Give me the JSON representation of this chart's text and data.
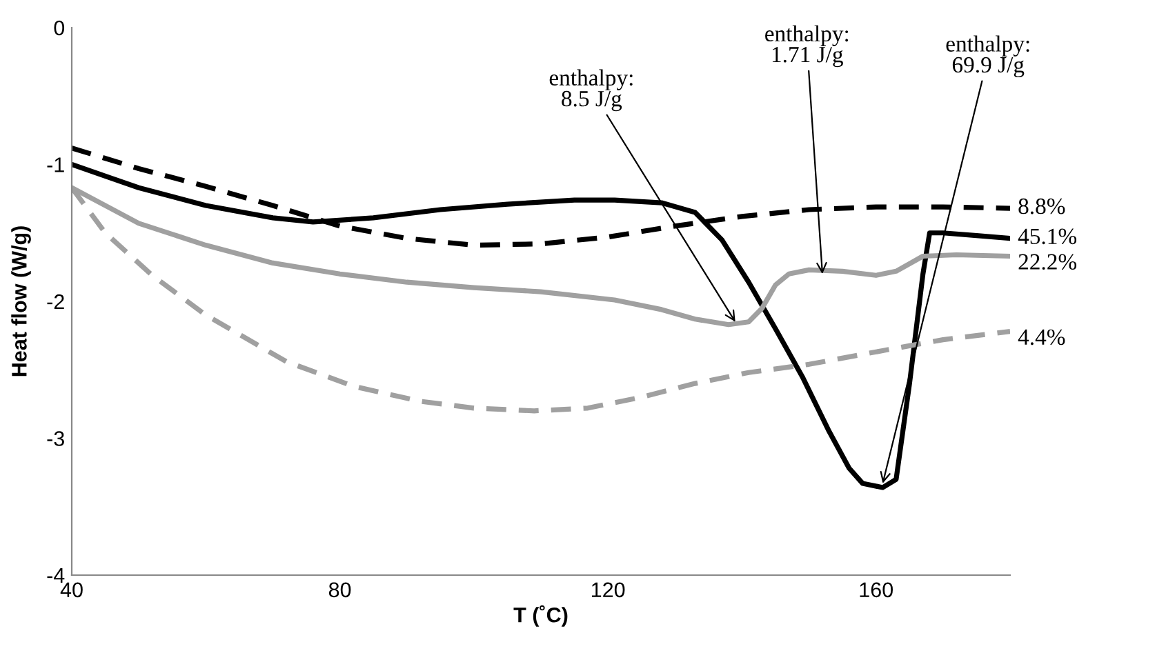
{
  "chart_data": {
    "type": "line",
    "xlabel": "T (˚C)",
    "ylabel": "Heat flow (W/g)",
    "xlim": [
      40,
      180
    ],
    "ylim": [
      -4,
      0
    ],
    "xticks": [
      40,
      80,
      120,
      160
    ],
    "yticks": [
      -4,
      -3,
      -2,
      -1,
      0
    ],
    "grid": false,
    "legend": false,
    "marker": "none",
    "series": [
      {
        "name": "8.8%",
        "color": "#000000",
        "line_style": "dashed",
        "x": [
          40,
          50,
          60,
          70,
          80,
          90,
          100,
          110,
          120,
          130,
          140,
          150,
          160,
          170,
          180
        ],
        "values": [
          -0.88,
          -1.03,
          -1.16,
          -1.3,
          -1.45,
          -1.54,
          -1.59,
          -1.58,
          -1.53,
          -1.45,
          -1.38,
          -1.33,
          -1.31,
          -1.31,
          -1.32
        ]
      },
      {
        "name": "45.1%",
        "color": "#000000",
        "line_style": "solid",
        "x": [
          40,
          50,
          60,
          70,
          76,
          85,
          95,
          105,
          115,
          121,
          128,
          133,
          137,
          141,
          145,
          149,
          153,
          156,
          158,
          161,
          163,
          165,
          167,
          168,
          170,
          175,
          180
        ],
        "values": [
          -1.0,
          -1.17,
          -1.3,
          -1.39,
          -1.42,
          -1.39,
          -1.33,
          -1.29,
          -1.26,
          -1.26,
          -1.28,
          -1.35,
          -1.55,
          -1.86,
          -2.2,
          -2.55,
          -2.95,
          -3.22,
          -3.33,
          -3.36,
          -3.3,
          -2.6,
          -1.8,
          -1.5,
          -1.5,
          -1.52,
          -1.54
        ]
      },
      {
        "name": "22.2%",
        "color": "#a0a0a0",
        "line_style": "solid",
        "x": [
          40,
          50,
          60,
          70,
          80,
          90,
          100,
          110,
          121,
          128,
          133,
          138,
          141,
          143,
          145,
          147,
          150,
          155,
          160,
          163,
          167,
          172,
          180
        ],
        "values": [
          -1.17,
          -1.43,
          -1.59,
          -1.72,
          -1.8,
          -1.86,
          -1.9,
          -1.93,
          -1.99,
          -2.06,
          -2.13,
          -2.17,
          -2.15,
          -2.05,
          -1.88,
          -1.8,
          -1.77,
          -1.78,
          -1.81,
          -1.78,
          -1.67,
          -1.66,
          -1.67
        ]
      },
      {
        "name": "4.4%",
        "color": "#a0a0a0",
        "line_style": "dashed",
        "x": [
          40,
          45,
          52,
          60,
          72,
          82,
          92,
          100,
          109,
          117,
          125,
          133,
          141,
          150,
          161,
          170,
          180
        ],
        "values": [
          -1.17,
          -1.5,
          -1.81,
          -2.1,
          -2.44,
          -2.62,
          -2.73,
          -2.78,
          -2.8,
          -2.78,
          -2.7,
          -2.6,
          -2.52,
          -2.46,
          -2.36,
          -2.28,
          -2.22
        ]
      }
    ],
    "annotations": [
      {
        "text": "enthalpy:\n8.5 J/g",
        "x": 139,
        "y": -2.15
      },
      {
        "text": "enthalpy:\n1.71 J/g",
        "x": 152,
        "y": -1.8
      },
      {
        "text": "enthalpy:\n69.9 J/g",
        "x": 161,
        "y": -3.33
      }
    ]
  }
}
